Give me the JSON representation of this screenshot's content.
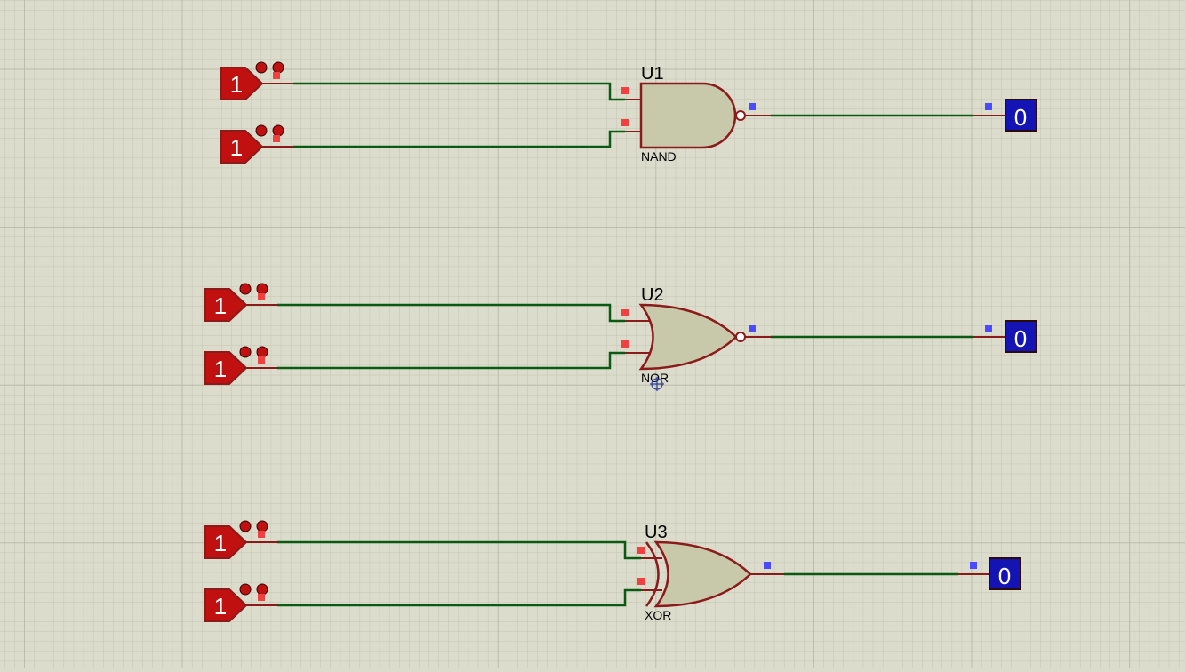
{
  "schematic": {
    "background_color": "#dcdccc",
    "wire_color": "#0b5a14",
    "component_color": "#8b1a1a",
    "gate_fill": "#c8c8aa",
    "logic_high_color": "#f04040",
    "logic_low_color": "#4a4aff",
    "gates": [
      {
        "ref": "U1",
        "type": "NAND",
        "inputs": [
          {
            "state": "1"
          },
          {
            "state": "1"
          }
        ],
        "output": {
          "state": "0"
        }
      },
      {
        "ref": "U2",
        "type": "NOR",
        "inputs": [
          {
            "state": "1"
          },
          {
            "state": "1"
          }
        ],
        "output": {
          "state": "0"
        }
      },
      {
        "ref": "U3",
        "type": "XOR",
        "inputs": [
          {
            "state": "1"
          },
          {
            "state": "1"
          }
        ],
        "output": {
          "state": "0"
        }
      }
    ]
  }
}
